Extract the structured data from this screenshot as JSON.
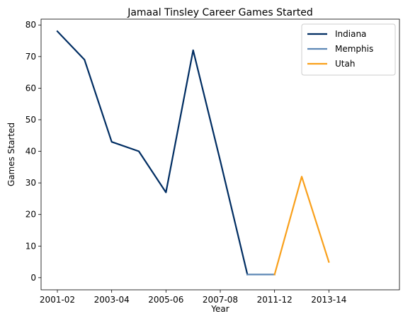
{
  "chart_data": {
    "type": "line",
    "title": "Jamaal Tinsley Career Games Started",
    "xlabel": "Year",
    "ylabel": "Games Started",
    "ylim": [
      -3.85,
      81.85
    ],
    "yticks": [
      0,
      10,
      20,
      30,
      40,
      50,
      60,
      70,
      80
    ],
    "xlim": [
      -0.6,
      12.6
    ],
    "xtick_positions": [
      0,
      2,
      4,
      6,
      8,
      10
    ],
    "xtick_labels": [
      "2001-02",
      "2003-04",
      "2005-06",
      "2007-08",
      "2011-12",
      "2013-14"
    ],
    "legend_position": "upper right",
    "grid": false,
    "series": [
      {
        "name": "Indiana",
        "color": "#002D62",
        "points": [
          {
            "x": 0,
            "y": 78
          },
          {
            "x": 1,
            "y": 69
          },
          {
            "x": 2,
            "y": 43
          },
          {
            "x": 3,
            "y": 40
          },
          {
            "x": 4,
            "y": 27
          },
          {
            "x": 5,
            "y": 72
          },
          {
            "x": 6,
            "y": 37
          },
          {
            "x": 7,
            "y": 1
          }
        ]
      },
      {
        "name": "Memphis",
        "color": "#5D87B5",
        "points": [
          {
            "x": 7,
            "y": 1
          },
          {
            "x": 8,
            "y": 1
          }
        ]
      },
      {
        "name": "Utah",
        "color": "#F9A01B",
        "points": [
          {
            "x": 8,
            "y": 1
          },
          {
            "x": 9,
            "y": 32
          },
          {
            "x": 10,
            "y": 5
          }
        ]
      }
    ]
  }
}
